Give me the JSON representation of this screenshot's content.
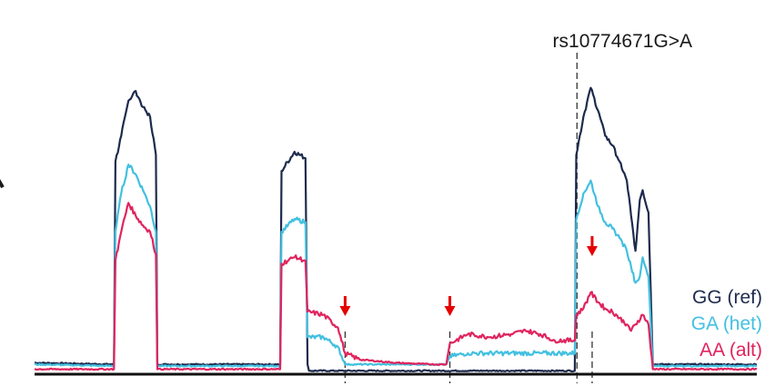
{
  "chart_data": {
    "type": "line",
    "title": "",
    "xlabel": "",
    "ylabel": "",
    "x_range": [
      0,
      100
    ],
    "y_range": [
      0,
      100
    ],
    "grid": false,
    "legend_position": "bottom-right",
    "annotation": {
      "label": "rs10774671G>A",
      "x": 75.1
    },
    "dashed_markers_x": [
      43.0,
      57.5,
      75.1,
      77.2
    ],
    "splice_arrows_x": [
      43.0,
      57.5,
      77.2
    ],
    "colors": {
      "GG": "#1e2b4d",
      "GA": "#43c0e0",
      "AA": "#e0245e",
      "arrow": "#e60000",
      "axis": "#111111"
    },
    "series": [
      {
        "name": "GG (ref)",
        "color": "#1e2b4d",
        "points": [
          [
            0,
            3
          ],
          [
            11,
            2.5
          ],
          [
            11.2,
            66
          ],
          [
            12,
            74
          ],
          [
            13,
            85
          ],
          [
            14,
            88
          ],
          [
            15,
            83
          ],
          [
            16,
            80
          ],
          [
            16.8,
            68
          ],
          [
            17,
            2.5
          ],
          [
            34,
            2.5
          ],
          [
            34.2,
            63
          ],
          [
            36,
            69
          ],
          [
            37.5,
            67
          ],
          [
            37.8,
            2.5
          ],
          [
            38,
            0.5
          ],
          [
            74.8,
            0.5
          ],
          [
            75,
            68
          ],
          [
            76,
            80
          ],
          [
            77,
            89
          ],
          [
            78,
            82
          ],
          [
            79,
            74
          ],
          [
            80,
            71
          ],
          [
            81,
            66
          ],
          [
            82,
            60
          ],
          [
            82.6,
            49
          ],
          [
            83.2,
            38
          ],
          [
            83.8,
            54
          ],
          [
            84.2,
            57
          ],
          [
            85,
            50
          ],
          [
            85.6,
            2.5
          ],
          [
            100,
            2.5
          ]
        ]
      },
      {
        "name": "GA (het)",
        "color": "#43c0e0",
        "points": [
          [
            0,
            2.5
          ],
          [
            11,
            2
          ],
          [
            11.2,
            44
          ],
          [
            12,
            56
          ],
          [
            13,
            65
          ],
          [
            14,
            62
          ],
          [
            15,
            57
          ],
          [
            16,
            52
          ],
          [
            16.8,
            44
          ],
          [
            17,
            2
          ],
          [
            34,
            2
          ],
          [
            34.2,
            44
          ],
          [
            36,
            48
          ],
          [
            37.5,
            47
          ],
          [
            37.8,
            11
          ],
          [
            40,
            11
          ],
          [
            42,
            8
          ],
          [
            43,
            2.5
          ],
          [
            57,
            2.5
          ],
          [
            57.5,
            5
          ],
          [
            60,
            6
          ],
          [
            65,
            6
          ],
          [
            70,
            6
          ],
          [
            74.8,
            6
          ],
          [
            75,
            48
          ],
          [
            76,
            56
          ],
          [
            77,
            60
          ],
          [
            78,
            52
          ],
          [
            79,
            47
          ],
          [
            80,
            45
          ],
          [
            81,
            42
          ],
          [
            82,
            38
          ],
          [
            82.6,
            33
          ],
          [
            83.2,
            28
          ],
          [
            83.8,
            30
          ],
          [
            84.2,
            36
          ],
          [
            85,
            30
          ],
          [
            85.6,
            2
          ],
          [
            100,
            2
          ]
        ]
      },
      {
        "name": "AA (alt)",
        "color": "#e0245e",
        "points": [
          [
            0,
            1
          ],
          [
            11,
            1
          ],
          [
            11.2,
            35
          ],
          [
            12,
            44
          ],
          [
            13,
            53
          ],
          [
            14,
            49
          ],
          [
            15,
            46
          ],
          [
            16,
            44
          ],
          [
            16.8,
            37
          ],
          [
            17,
            1
          ],
          [
            34,
            1
          ],
          [
            34.2,
            34
          ],
          [
            36,
            36
          ],
          [
            37.5,
            35
          ],
          [
            37.8,
            19
          ],
          [
            40,
            18
          ],
          [
            42,
            14
          ],
          [
            43,
            6
          ],
          [
            45,
            4
          ],
          [
            50,
            3
          ],
          [
            55,
            2.5
          ],
          [
            57,
            2.5
          ],
          [
            57.5,
            9
          ],
          [
            60,
            12
          ],
          [
            63,
            11
          ],
          [
            66,
            12
          ],
          [
            68,
            13
          ],
          [
            70,
            12
          ],
          [
            72,
            10
          ],
          [
            74.8,
            10
          ],
          [
            75,
            18
          ],
          [
            76,
            20
          ],
          [
            77,
            25
          ],
          [
            78,
            22
          ],
          [
            79,
            20
          ],
          [
            80,
            19
          ],
          [
            81,
            17
          ],
          [
            82,
            15
          ],
          [
            82.6,
            13
          ],
          [
            83.2,
            15
          ],
          [
            84.2,
            18
          ],
          [
            85,
            15
          ],
          [
            85.6,
            1
          ],
          [
            100,
            1
          ]
        ]
      }
    ]
  },
  "legend": {
    "items": [
      {
        "label": "GG (ref)",
        "color": "#1e2b4d"
      },
      {
        "label": "GA (het)",
        "color": "#43c0e0"
      },
      {
        "label": "AA (alt)",
        "color": "#e0245e"
      }
    ]
  }
}
